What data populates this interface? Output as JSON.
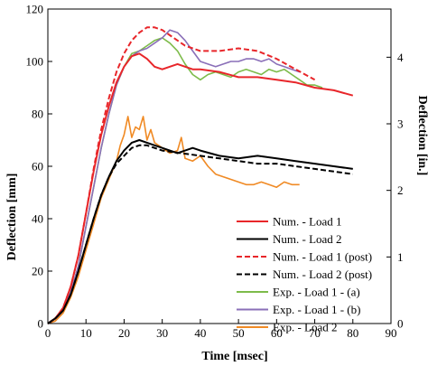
{
  "chart_data": {
    "type": "line",
    "xlabel": "Time  [msec]",
    "ylabel": "Deflection  [mm]",
    "y2label": "Deflection  [in.]",
    "xlim": [
      0,
      90
    ],
    "ylim": [
      0,
      120
    ],
    "y2lim": [
      0,
      4.724
    ],
    "x_ticks": [
      0,
      10,
      20,
      30,
      40,
      50,
      60,
      70,
      80,
      90
    ],
    "y_ticks": [
      0,
      20,
      40,
      60,
      80,
      100,
      120
    ],
    "y2_ticks": [
      0,
      1,
      2,
      3,
      4
    ],
    "grid": false,
    "legend_position": "right-center",
    "series": [
      {
        "name": "Num. - Load 1",
        "color": "#e8262a",
        "dash": "solid",
        "x": [
          0,
          2,
          4,
          6,
          8,
          10,
          12,
          14,
          16,
          18,
          20,
          22,
          24,
          26,
          28,
          30,
          32,
          34,
          36,
          38,
          40,
          45,
          50,
          55,
          60,
          65,
          70,
          75,
          80
        ],
        "y": [
          0,
          2,
          6,
          14,
          26,
          42,
          58,
          72,
          83,
          92,
          98,
          102,
          103,
          101,
          98,
          97,
          98,
          99,
          98,
          97,
          97,
          96,
          94,
          94,
          93,
          92,
          90,
          89,
          87
        ]
      },
      {
        "name": "Num. - Load 2",
        "color": "#000000",
        "dash": "solid",
        "x": [
          0,
          2,
          4,
          6,
          8,
          10,
          12,
          14,
          16,
          18,
          20,
          22,
          24,
          26,
          28,
          30,
          32,
          34,
          36,
          38,
          40,
          45,
          50,
          55,
          60,
          65,
          70,
          75,
          80
        ],
        "y": [
          0,
          2,
          5,
          11,
          20,
          30,
          40,
          49,
          56,
          62,
          66,
          69,
          70,
          69,
          68,
          67,
          66,
          65,
          66,
          67,
          66,
          64,
          63,
          64,
          63,
          62,
          61,
          60,
          59
        ]
      },
      {
        "name": "Num. - Load 1 (post)",
        "color": "#e8262a",
        "dash": "dashed",
        "x": [
          0,
          2,
          4,
          6,
          8,
          10,
          12,
          14,
          16,
          18,
          20,
          22,
          24,
          26,
          28,
          30,
          32,
          34,
          36,
          40,
          45,
          50,
          55,
          60,
          65,
          70
        ],
        "y": [
          0,
          2,
          6,
          14,
          26,
          42,
          59,
          74,
          86,
          96,
          103,
          108,
          111,
          113,
          113,
          112,
          110,
          108,
          106,
          104,
          104,
          105,
          104,
          101,
          97,
          93
        ]
      },
      {
        "name": "Num. - Load 2 (post)",
        "color": "#000000",
        "dash": "dashed",
        "x": [
          0,
          2,
          4,
          6,
          8,
          10,
          12,
          14,
          16,
          18,
          20,
          22,
          24,
          26,
          28,
          30,
          35,
          40,
          45,
          50,
          55,
          60,
          65,
          70,
          75,
          80
        ],
        "y": [
          0,
          2,
          5,
          11,
          20,
          30,
          40,
          49,
          56,
          61,
          64,
          67,
          68,
          68,
          67,
          66,
          65,
          64,
          63,
          62,
          61,
          61,
          60,
          59,
          58,
          57
        ]
      },
      {
        "name": "Exp. - Load 1 - (a)",
        "color": "#7dbb4a",
        "dash": "solid",
        "x": [
          0,
          2,
          4,
          6,
          8,
          10,
          12,
          14,
          16,
          18,
          20,
          22,
          24,
          26,
          28,
          30,
          32,
          34,
          36,
          38,
          40,
          42,
          44,
          46,
          48,
          50,
          52,
          54,
          56,
          58,
          60,
          62,
          64,
          66,
          68,
          70,
          72
        ],
        "y": [
          0,
          1,
          5,
          12,
          22,
          37,
          52,
          67,
          80,
          91,
          98,
          103,
          104,
          106,
          108,
          109,
          107,
          104,
          99,
          95,
          93,
          95,
          96,
          95,
          94,
          96,
          97,
          96,
          95,
          97,
          96,
          97,
          95,
          93,
          91,
          91,
          90
        ]
      },
      {
        "name": "Exp. - Load 1 - (b)",
        "color": "#8a6fb8",
        "dash": "solid",
        "x": [
          0,
          2,
          4,
          6,
          8,
          10,
          12,
          14,
          16,
          18,
          20,
          22,
          24,
          26,
          28,
          30,
          32,
          34,
          36,
          38,
          40,
          42,
          44,
          46,
          48,
          50,
          52,
          54,
          56,
          58,
          60,
          62,
          64,
          66
        ],
        "y": [
          0,
          1,
          5,
          12,
          22,
          37,
          52,
          67,
          80,
          91,
          98,
          102,
          104,
          105,
          107,
          109,
          112,
          111,
          108,
          104,
          100,
          99,
          98,
          99,
          100,
          100,
          101,
          101,
          100,
          101,
          99,
          98,
          97,
          96
        ]
      },
      {
        "name": "Exp. - Load 2",
        "color": "#f08a24",
        "dash": "solid",
        "x": [
          0,
          2,
          4,
          6,
          8,
          10,
          12,
          14,
          16,
          18,
          19,
          20,
          21,
          22,
          23,
          24,
          25,
          26,
          27,
          28,
          30,
          32,
          34,
          35,
          36,
          38,
          40,
          42,
          44,
          46,
          48,
          50,
          52,
          54,
          56,
          58,
          60,
          62,
          64,
          66
        ],
        "y": [
          0,
          1,
          4,
          10,
          18,
          28,
          38,
          48,
          55,
          62,
          68,
          72,
          79,
          71,
          75,
          74,
          79,
          70,
          74,
          69,
          67,
          65,
          66,
          71,
          63,
          62,
          64,
          60,
          57,
          56,
          55,
          54,
          53,
          53,
          54,
          53,
          52,
          54,
          53,
          53
        ]
      }
    ]
  }
}
